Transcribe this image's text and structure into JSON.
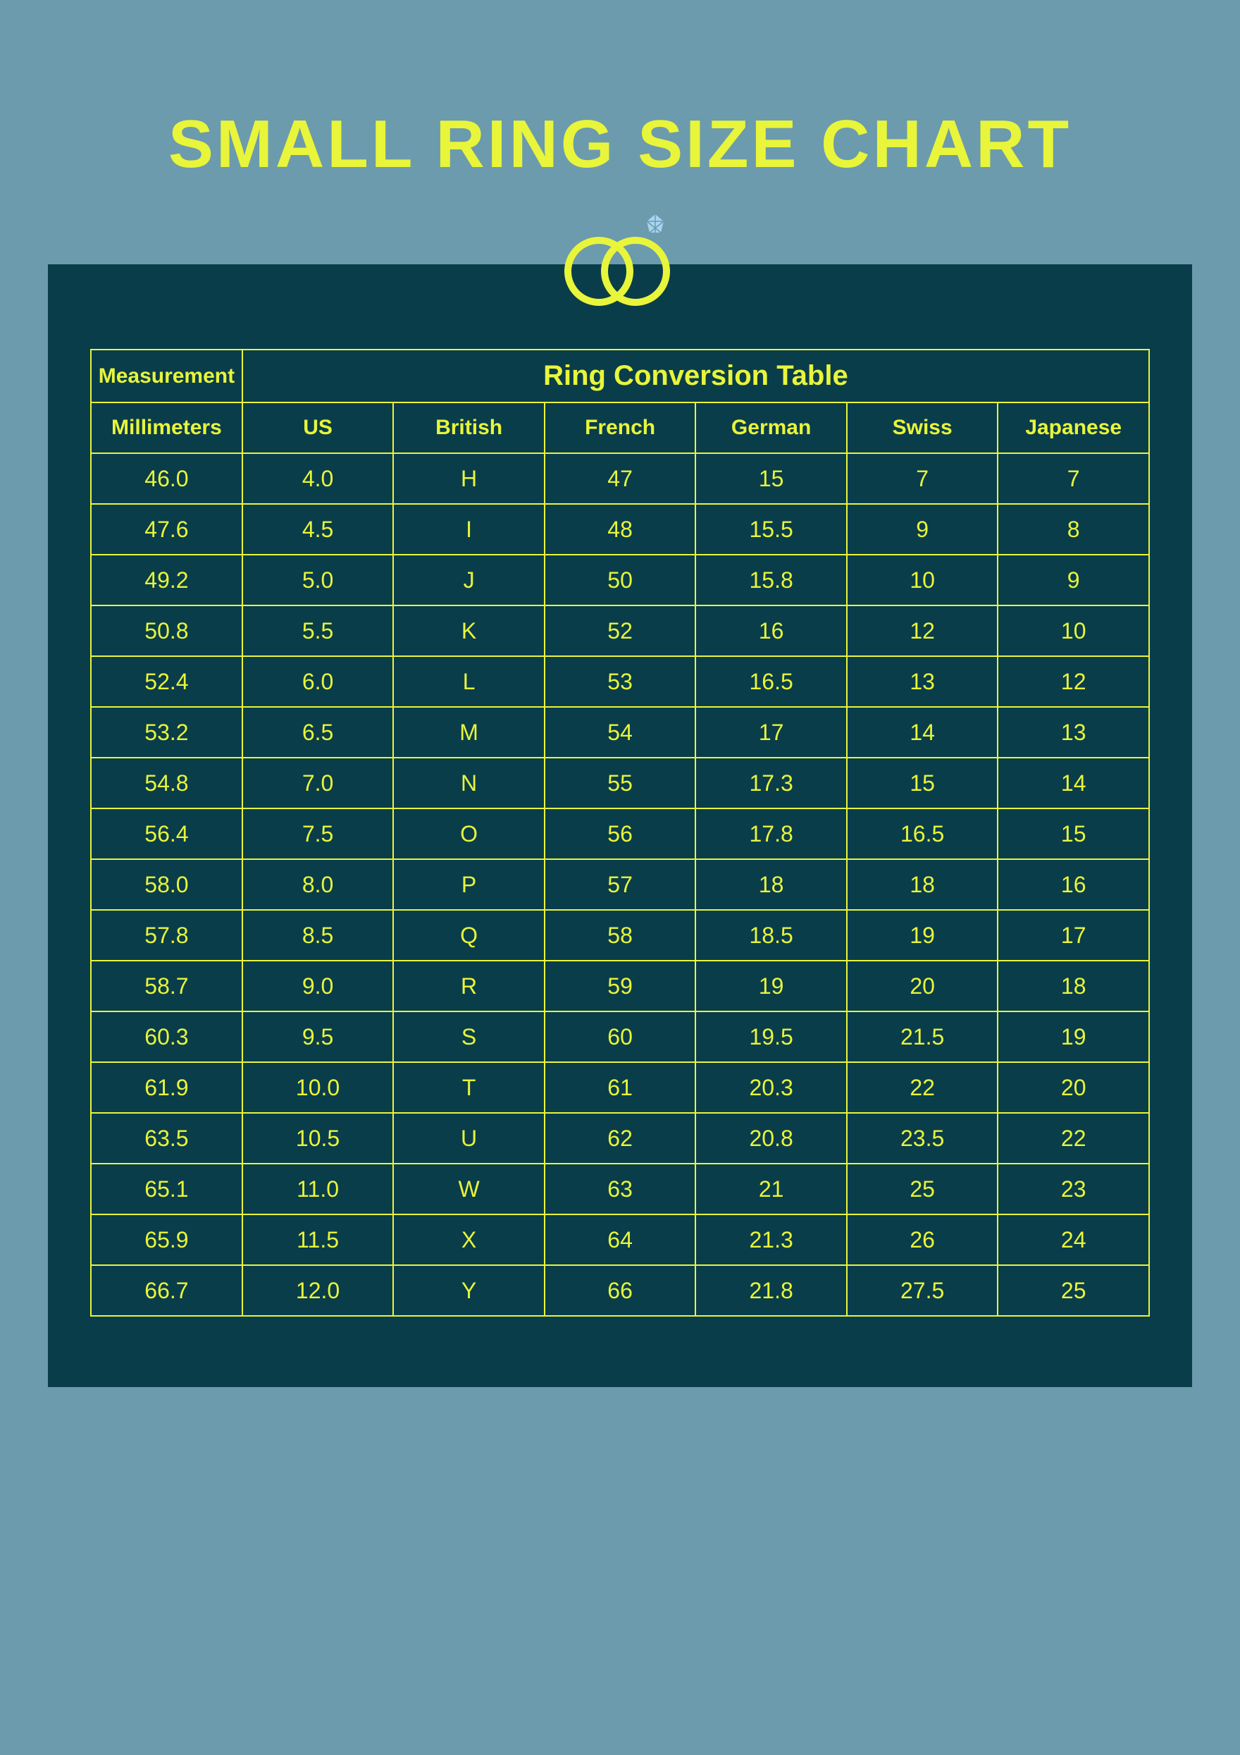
{
  "title": "SMALL RING SIZE CHART",
  "table": {
    "header_measurement": "Measurement",
    "header_conversion": "Ring Conversion Table",
    "columns": [
      "Millimeters",
      "US",
      "British",
      "French",
      "German",
      "Swiss",
      "Japanese"
    ],
    "rows": [
      [
        "46.0",
        "4.0",
        "H",
        "47",
        "15",
        "7",
        "7"
      ],
      [
        "47.6",
        "4.5",
        "I",
        "48",
        "15.5",
        "9",
        "8"
      ],
      [
        "49.2",
        "5.0",
        "J",
        "50",
        "15.8",
        "10",
        "9"
      ],
      [
        "50.8",
        "5.5",
        "K",
        "52",
        "16",
        "12",
        "10"
      ],
      [
        "52.4",
        "6.0",
        "L",
        "53",
        "16.5",
        "13",
        "12"
      ],
      [
        "53.2",
        "6.5",
        "M",
        "54",
        "17",
        "14",
        "13"
      ],
      [
        "54.8",
        "7.0",
        "N",
        "55",
        "17.3",
        "15",
        "14"
      ],
      [
        "56.4",
        "7.5",
        "O",
        "56",
        "17.8",
        "16.5",
        "15"
      ],
      [
        "58.0",
        "8.0",
        "P",
        "57",
        "18",
        "18",
        "16"
      ],
      [
        "57.8",
        "8.5",
        "Q",
        "58",
        "18.5",
        "19",
        "17"
      ],
      [
        "58.7",
        "9.0",
        "R",
        "59",
        "19",
        "20",
        "18"
      ],
      [
        "60.3",
        "9.5",
        "S",
        "60",
        "19.5",
        "21.5",
        "19"
      ],
      [
        "61.9",
        "10.0",
        "T",
        "61",
        "20.3",
        "22",
        "20"
      ],
      [
        "63.5",
        "10.5",
        "U",
        "62",
        "20.8",
        "23.5",
        "22"
      ],
      [
        "65.1",
        "11.0",
        "W",
        "63",
        "21",
        "25",
        "23"
      ],
      [
        "65.9",
        "11.5",
        "X",
        "64",
        "21.3",
        "26",
        "24"
      ],
      [
        "66.7",
        "12.0",
        "Y",
        "66",
        "21.8",
        "27.5",
        "25"
      ]
    ]
  },
  "colors": {
    "page_bg": "#6b9bac",
    "panel_bg": "#0a3d4a",
    "accent": "#e8f53a",
    "diamond": "#a8d4f0"
  },
  "icon": {
    "name": "wedding-rings-icon"
  }
}
